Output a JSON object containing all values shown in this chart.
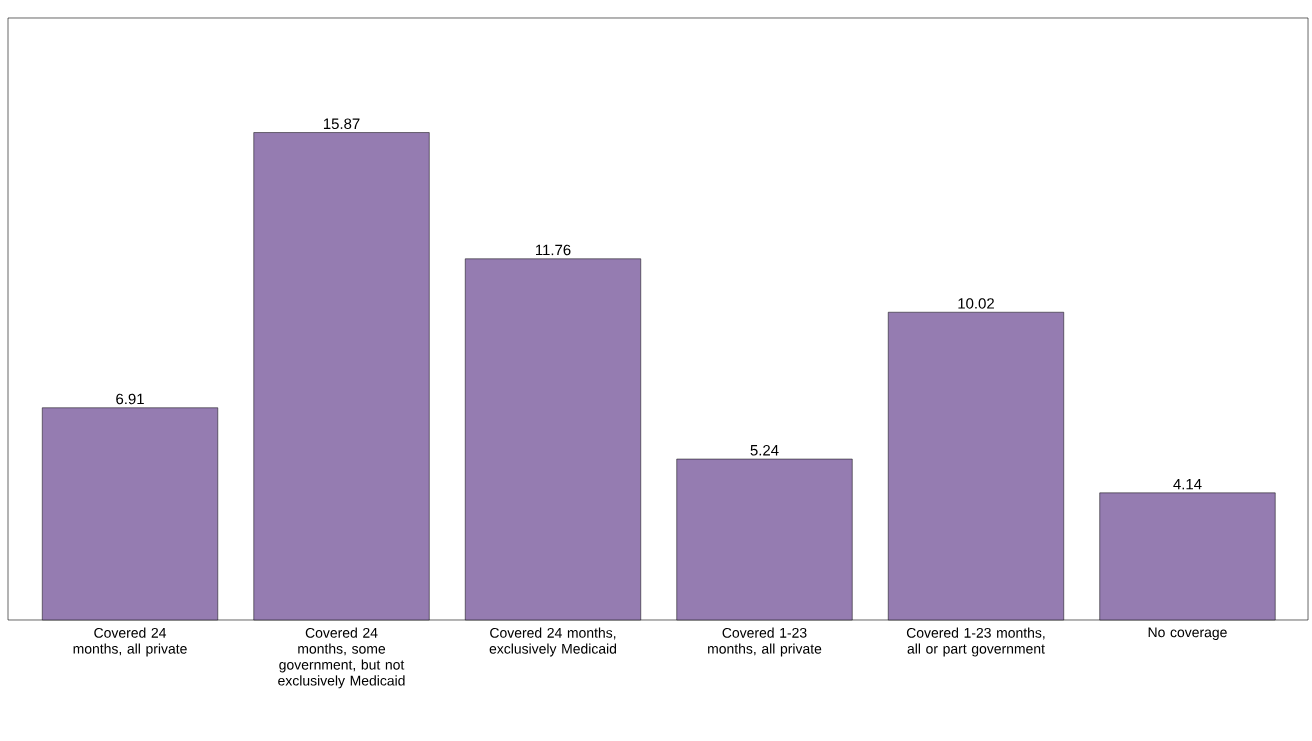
{
  "chart_data": {
    "type": "bar",
    "categories": [
      "Covered 24 months, all private",
      "Covered 24 months, some government, but not exclusively Medicaid",
      "Covered 24 months, exclusively Medicaid",
      "Covered 1-23 months, all private",
      "Covered 1-23 months, all or part government",
      "No coverage"
    ],
    "values": [
      6.91,
      15.87,
      11.76,
      5.24,
      10.02,
      4.14
    ],
    "color": "#957cb1",
    "data_labels": true
  }
}
